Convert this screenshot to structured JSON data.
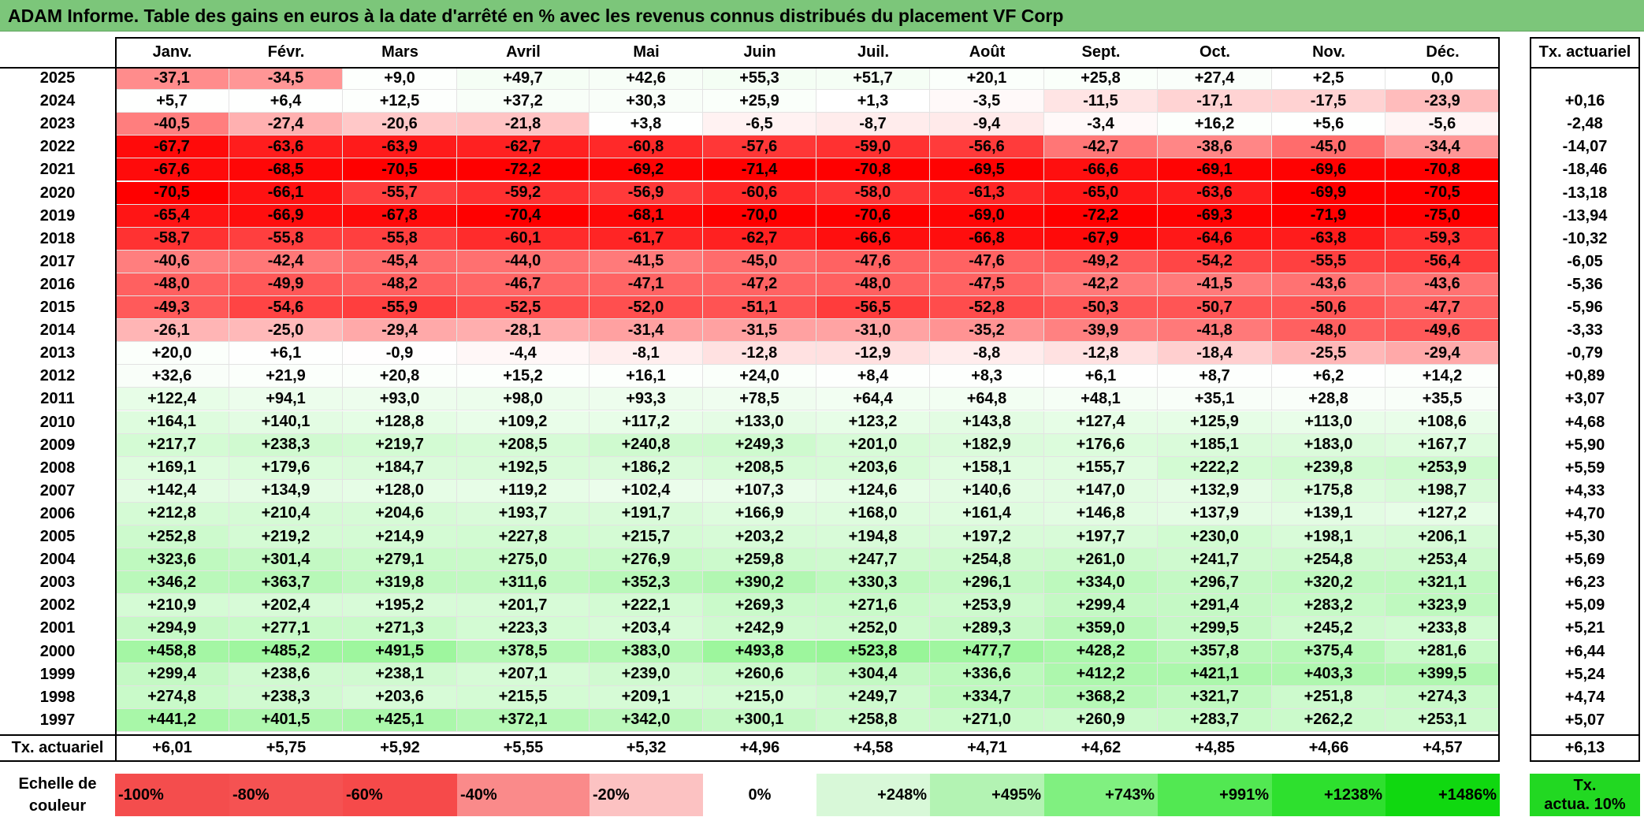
{
  "title": "ADAM Informe. Table des gains en euros à la date d'arrêté en % avec les revenus connus distribués du placement VF Corp",
  "months": [
    "Janv.",
    "Févr.",
    "Mars",
    "Avril",
    "Mai",
    "Juin",
    "Juil.",
    "Août",
    "Sept.",
    "Oct.",
    "Nov.",
    "Déc."
  ],
  "rate_header": "Tx. actuariel",
  "rows": [
    {
      "year": "2025",
      "values": [
        "-37,1",
        "-34,5",
        "+9,0",
        "+49,7",
        "+42,6",
        "+55,3",
        "+51,7",
        "+20,1",
        "+25,8",
        "+27,4",
        "+2,5",
        "0,0"
      ],
      "rate": ""
    },
    {
      "year": "2024",
      "values": [
        "+5,7",
        "+6,4",
        "+12,5",
        "+37,2",
        "+30,3",
        "+25,9",
        "+1,3",
        "-3,5",
        "-11,5",
        "-17,1",
        "-17,5",
        "-23,9"
      ],
      "rate": "+0,16"
    },
    {
      "year": "2023",
      "values": [
        "-40,5",
        "-27,4",
        "-20,6",
        "-21,8",
        "+3,8",
        "-6,5",
        "-8,7",
        "-9,4",
        "-3,4",
        "+16,2",
        "+5,6",
        "-5,6"
      ],
      "rate": "-2,48"
    },
    {
      "year": "2022",
      "values": [
        "-67,7",
        "-63,6",
        "-63,9",
        "-62,7",
        "-60,8",
        "-57,6",
        "-59,0",
        "-56,6",
        "-42,7",
        "-38,6",
        "-45,0",
        "-34,4"
      ],
      "rate": "-14,07"
    },
    {
      "year": "2021",
      "values": [
        "-67,6",
        "-68,5",
        "-70,5",
        "-72,2",
        "-69,2",
        "-71,4",
        "-70,8",
        "-69,5",
        "-66,6",
        "-69,1",
        "-69,6",
        "-70,8"
      ],
      "rate": "-18,46"
    },
    {
      "year": "2020",
      "values": [
        "-70,5",
        "-66,1",
        "-55,7",
        "-59,2",
        "-56,9",
        "-60,6",
        "-58,0",
        "-61,3",
        "-65,0",
        "-63,6",
        "-69,9",
        "-70,5"
      ],
      "rate": "-13,18"
    },
    {
      "year": "2019",
      "values": [
        "-65,4",
        "-66,9",
        "-67,8",
        "-70,4",
        "-68,1",
        "-70,0",
        "-70,6",
        "-69,0",
        "-72,2",
        "-69,3",
        "-71,9",
        "-75,0"
      ],
      "rate": "-13,94"
    },
    {
      "year": "2018",
      "values": [
        "-58,7",
        "-55,8",
        "-55,8",
        "-60,1",
        "-61,7",
        "-62,7",
        "-66,6",
        "-66,8",
        "-67,9",
        "-64,6",
        "-63,8",
        "-59,3"
      ],
      "rate": "-10,32"
    },
    {
      "year": "2017",
      "values": [
        "-40,6",
        "-42,4",
        "-45,4",
        "-44,0",
        "-41,5",
        "-45,0",
        "-47,6",
        "-47,6",
        "-49,2",
        "-54,2",
        "-55,5",
        "-56,4"
      ],
      "rate": "-6,05"
    },
    {
      "year": "2016",
      "values": [
        "-48,0",
        "-49,9",
        "-48,2",
        "-46,7",
        "-47,1",
        "-47,2",
        "-48,0",
        "-47,5",
        "-42,2",
        "-41,5",
        "-43,6",
        "-43,6"
      ],
      "rate": "-5,36"
    },
    {
      "year": "2015",
      "values": [
        "-49,3",
        "-54,6",
        "-55,9",
        "-52,5",
        "-52,0",
        "-51,1",
        "-56,5",
        "-52,8",
        "-50,3",
        "-50,7",
        "-50,6",
        "-47,7"
      ],
      "rate": "-5,96"
    },
    {
      "year": "2014",
      "values": [
        "-26,1",
        "-25,0",
        "-29,4",
        "-28,1",
        "-31,4",
        "-31,5",
        "-31,0",
        "-35,2",
        "-39,9",
        "-41,8",
        "-48,0",
        "-49,6"
      ],
      "rate": "-3,33"
    },
    {
      "year": "2013",
      "values": [
        "+20,0",
        "+6,1",
        "-0,9",
        "-4,4",
        "-8,1",
        "-12,8",
        "-12,9",
        "-8,8",
        "-12,8",
        "-18,4",
        "-25,5",
        "-29,4"
      ],
      "rate": "-0,79"
    },
    {
      "year": "2012",
      "values": [
        "+32,6",
        "+21,9",
        "+20,8",
        "+15,2",
        "+16,1",
        "+24,0",
        "+8,4",
        "+8,3",
        "+6,1",
        "+8,7",
        "+6,2",
        "+14,2"
      ],
      "rate": "+0,89"
    },
    {
      "year": "2011",
      "values": [
        "+122,4",
        "+94,1",
        "+93,0",
        "+98,0",
        "+93,3",
        "+78,5",
        "+64,4",
        "+64,8",
        "+48,1",
        "+35,1",
        "+28,8",
        "+35,5"
      ],
      "rate": "+3,07"
    },
    {
      "year": "2010",
      "values": [
        "+164,1",
        "+140,1",
        "+128,8",
        "+109,2",
        "+117,2",
        "+133,0",
        "+123,2",
        "+143,8",
        "+127,4",
        "+125,9",
        "+113,0",
        "+108,6"
      ],
      "rate": "+4,68"
    },
    {
      "year": "2009",
      "values": [
        "+217,7",
        "+238,3",
        "+219,7",
        "+208,5",
        "+240,8",
        "+249,3",
        "+201,0",
        "+182,9",
        "+176,6",
        "+185,1",
        "+183,0",
        "+167,7"
      ],
      "rate": "+5,90"
    },
    {
      "year": "2008",
      "values": [
        "+169,1",
        "+179,6",
        "+184,7",
        "+192,5",
        "+186,2",
        "+208,5",
        "+203,6",
        "+158,1",
        "+155,7",
        "+222,2",
        "+239,8",
        "+253,9"
      ],
      "rate": "+5,59"
    },
    {
      "year": "2007",
      "values": [
        "+142,4",
        "+134,9",
        "+128,0",
        "+119,2",
        "+102,4",
        "+107,3",
        "+124,6",
        "+140,6",
        "+147,0",
        "+132,9",
        "+175,8",
        "+198,7"
      ],
      "rate": "+4,33"
    },
    {
      "year": "2006",
      "values": [
        "+212,8",
        "+210,4",
        "+204,6",
        "+193,7",
        "+191,7",
        "+166,9",
        "+168,0",
        "+161,4",
        "+146,8",
        "+137,9",
        "+139,1",
        "+127,2"
      ],
      "rate": "+4,70"
    },
    {
      "year": "2005",
      "values": [
        "+252,8",
        "+219,2",
        "+214,9",
        "+227,8",
        "+215,7",
        "+203,2",
        "+194,8",
        "+197,2",
        "+197,7",
        "+230,0",
        "+198,1",
        "+206,1"
      ],
      "rate": "+5,30"
    },
    {
      "year": "2004",
      "values": [
        "+323,6",
        "+301,4",
        "+279,1",
        "+275,0",
        "+276,9",
        "+259,8",
        "+247,7",
        "+254,8",
        "+261,0",
        "+241,7",
        "+254,8",
        "+253,4"
      ],
      "rate": "+5,69"
    },
    {
      "year": "2003",
      "values": [
        "+346,2",
        "+363,7",
        "+319,8",
        "+311,6",
        "+352,3",
        "+390,2",
        "+330,3",
        "+296,1",
        "+334,0",
        "+296,7",
        "+320,2",
        "+321,1"
      ],
      "rate": "+6,23"
    },
    {
      "year": "2002",
      "values": [
        "+210,9",
        "+202,4",
        "+195,2",
        "+201,7",
        "+222,1",
        "+269,3",
        "+271,6",
        "+253,9",
        "+299,4",
        "+291,4",
        "+283,2",
        "+323,9"
      ],
      "rate": "+5,09"
    },
    {
      "year": "2001",
      "values": [
        "+294,9",
        "+277,1",
        "+271,3",
        "+223,3",
        "+203,4",
        "+242,9",
        "+252,0",
        "+289,3",
        "+359,0",
        "+299,5",
        "+245,2",
        "+233,8"
      ],
      "rate": "+5,21"
    },
    {
      "year": "2000",
      "values": [
        "+458,8",
        "+485,2",
        "+491,5",
        "+378,5",
        "+383,0",
        "+493,8",
        "+523,8",
        "+477,7",
        "+428,2",
        "+357,8",
        "+375,4",
        "+281,6"
      ],
      "rate": "+6,44"
    },
    {
      "year": "1999",
      "values": [
        "+299,4",
        "+238,6",
        "+238,1",
        "+207,1",
        "+239,0",
        "+260,6",
        "+304,4",
        "+336,6",
        "+412,2",
        "+421,1",
        "+403,3",
        "+399,5"
      ],
      "rate": "+5,24"
    },
    {
      "year": "1998",
      "values": [
        "+274,8",
        "+238,3",
        "+203,6",
        "+215,5",
        "+209,1",
        "+215,0",
        "+249,7",
        "+334,7",
        "+368,2",
        "+321,7",
        "+251,8",
        "+274,3"
      ],
      "rate": "+4,74"
    },
    {
      "year": "1997",
      "values": [
        "+441,2",
        "+401,5",
        "+425,1",
        "+372,1",
        "+342,0",
        "+300,1",
        "+258,8",
        "+271,0",
        "+260,9",
        "+283,7",
        "+262,2",
        "+253,1"
      ],
      "rate": "+5,07"
    }
  ],
  "footer": {
    "label": "Tx. actuariel",
    "values": [
      "+6,01",
      "+5,75",
      "+5,92",
      "+5,55",
      "+5,32",
      "+4,96",
      "+4,58",
      "+4,71",
      "+4,62",
      "+4,85",
      "+4,66",
      "+4,57"
    ],
    "rate": "+6,13"
  },
  "legend": {
    "label_line1": "Echelle de",
    "label_line2": "couleur",
    "items": [
      {
        "text": "-100%",
        "color": "#f44d4d",
        "align": "left"
      },
      {
        "text": "-80%",
        "color": "#f55252",
        "align": "left"
      },
      {
        "text": "-60%",
        "color": "#f64a4a",
        "align": "left"
      },
      {
        "text": "-40%",
        "color": "#fa8a8a",
        "align": "left"
      },
      {
        "text": "-20%",
        "color": "#fcc2c2",
        "align": "left"
      },
      {
        "text": "0%",
        "color": "#ffffff",
        "align": "center"
      },
      {
        "text": "+248%",
        "color": "#d8f8d8",
        "align": "right"
      },
      {
        "text": "+495%",
        "color": "#b3f3b3",
        "align": "right"
      },
      {
        "text": "+743%",
        "color": "#80f080",
        "align": "right"
      },
      {
        "text": "+991%",
        "color": "#52e852",
        "align": "right"
      },
      {
        "text": "+1238%",
        "color": "#2ee02e",
        "align": "right"
      },
      {
        "text": "+1486%",
        "color": "#10d810",
        "align": "right"
      }
    ],
    "rate_line1": "Tx.",
    "rate_line2": "actua. 10%",
    "rate_color": "#22d822"
  },
  "colors": {
    "title_bg": "#7cc67a",
    "negative_max": "#ff0000",
    "positive_max": "#00d800"
  }
}
